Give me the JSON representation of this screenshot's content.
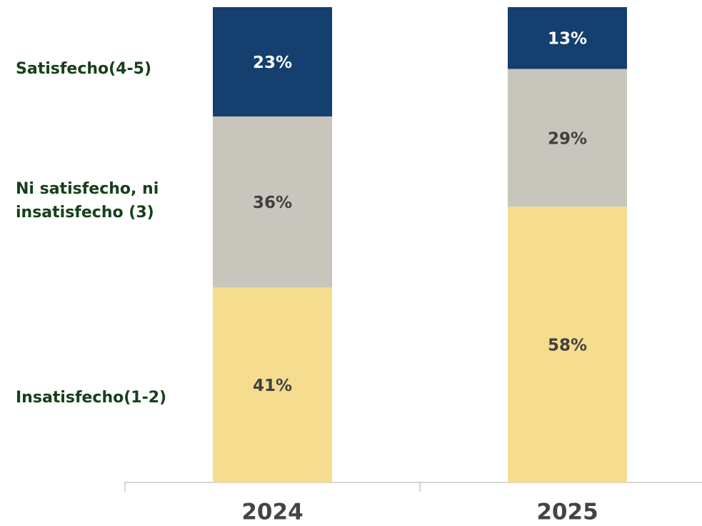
{
  "chart_data": {
    "type": "stacked_bar",
    "categories": [
      "2024",
      "2025"
    ],
    "ylim": [
      0,
      100
    ],
    "series": [
      {
        "name": "Insatisfecho(1-2)",
        "color": "#f5dc8f",
        "label_color": "#404040",
        "values": [
          41,
          58
        ],
        "value_labels": [
          "41%",
          "58%"
        ]
      },
      {
        "name": "Ni satisfecho, ni insatisfecho (3)",
        "color": "#c8c5bd",
        "label_color": "#404040",
        "values": [
          36,
          29
        ],
        "value_labels": [
          "36%",
          "29%"
        ]
      },
      {
        "name": "Satisfecho(4-5)",
        "color": "#143f6e",
        "label_color": "#ffffff",
        "values": [
          23,
          13
        ],
        "value_labels": [
          "23%",
          "13%"
        ]
      }
    ]
  }
}
